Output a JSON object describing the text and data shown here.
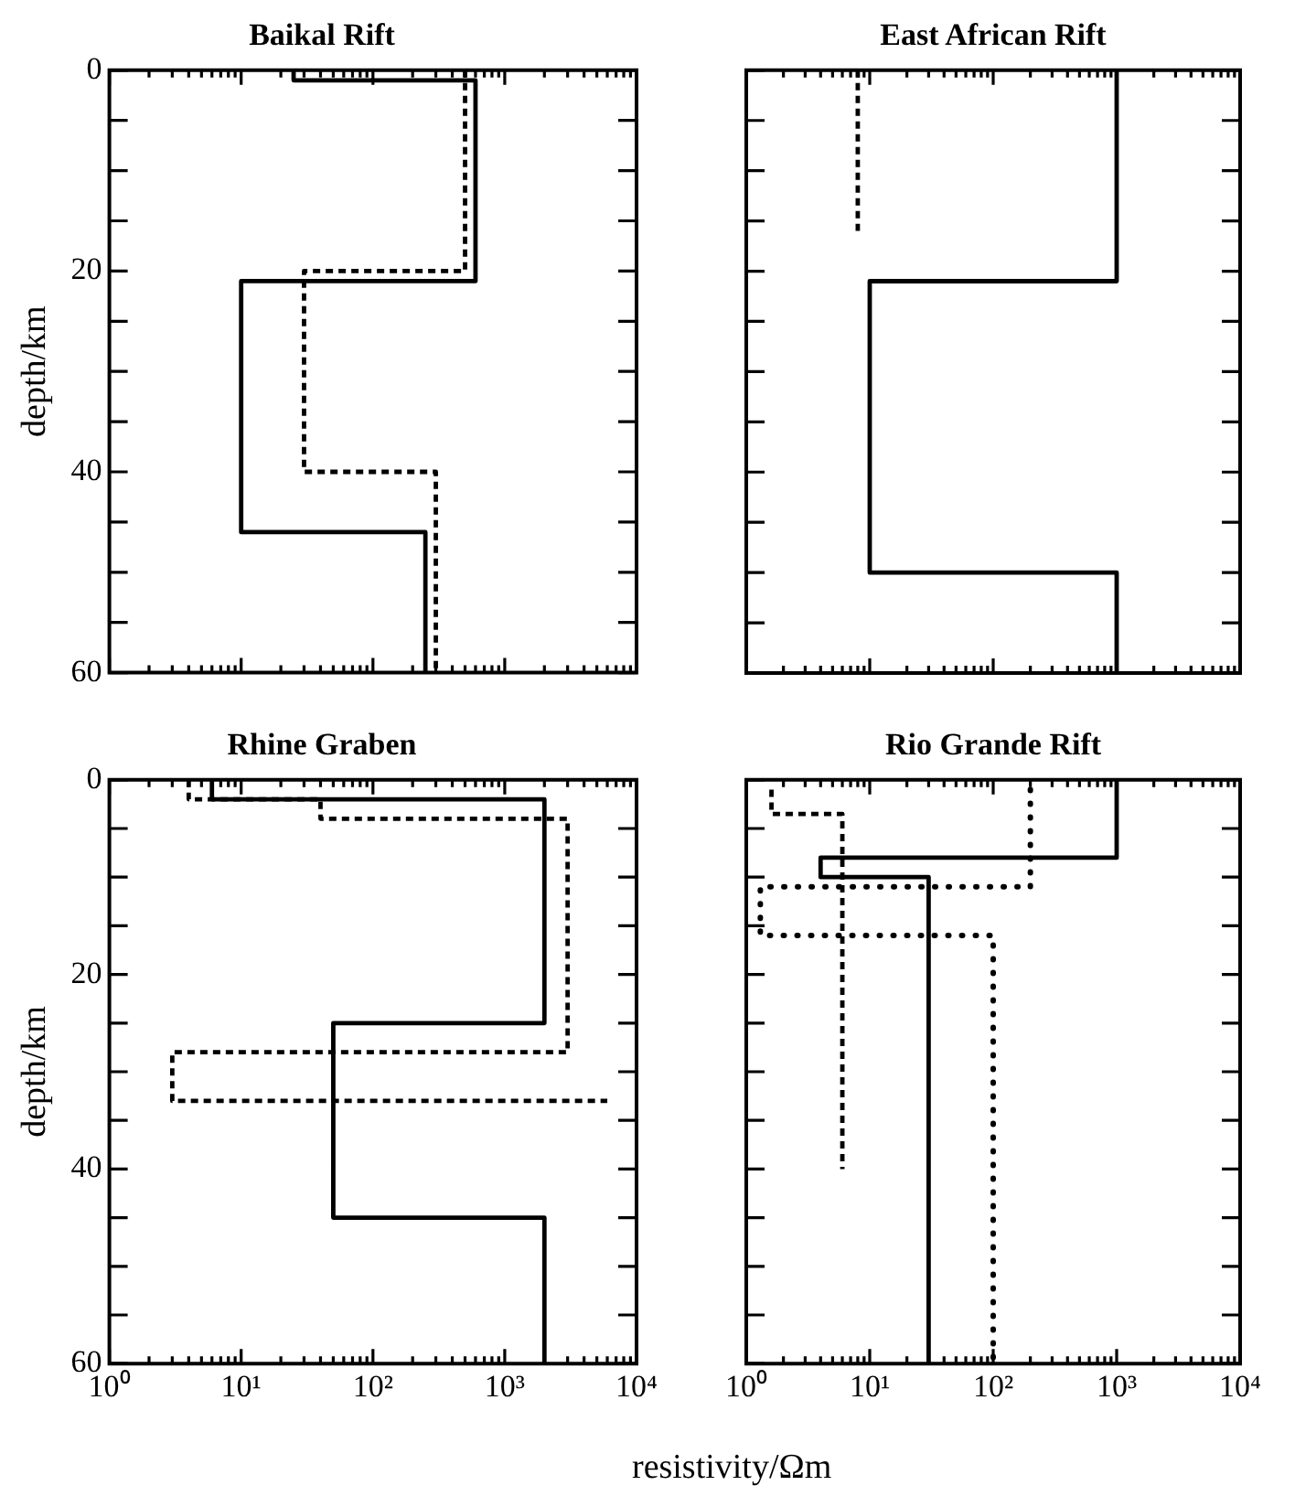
{
  "chart_data": [
    {
      "type": "line",
      "title": "Baikal Rift",
      "ylabel": "depth/km",
      "log": "x",
      "xlim": [
        1,
        10000
      ],
      "ylim": [
        60,
        0
      ],
      "tick_labels": "y",
      "xticks": [
        {
          "value": 1,
          "label": null
        },
        {
          "value": 2,
          "label": null
        },
        {
          "value": 3,
          "label": null
        },
        {
          "value": 4,
          "label": null
        },
        {
          "value": 5,
          "label": null
        },
        {
          "value": 6,
          "label": null
        },
        {
          "value": 7,
          "label": null
        },
        {
          "value": 8,
          "label": null
        },
        {
          "value": 9,
          "label": null
        },
        {
          "value": 10,
          "label": null
        },
        {
          "value": 20,
          "label": null
        },
        {
          "value": 30,
          "label": null
        },
        {
          "value": 40,
          "label": null
        },
        {
          "value": 50,
          "label": null
        },
        {
          "value": 60,
          "label": null
        },
        {
          "value": 70,
          "label": null
        },
        {
          "value": 80,
          "label": null
        },
        {
          "value": 90,
          "label": null
        },
        {
          "value": 100,
          "label": null
        },
        {
          "value": 200,
          "label": null
        },
        {
          "value": 300,
          "label": null
        },
        {
          "value": 400,
          "label": null
        },
        {
          "value": 500,
          "label": null
        },
        {
          "value": 600,
          "label": null
        },
        {
          "value": 700,
          "label": null
        },
        {
          "value": 800,
          "label": null
        },
        {
          "value": 900,
          "label": null
        },
        {
          "value": 1000,
          "label": null
        },
        {
          "value": 2000,
          "label": null
        },
        {
          "value": 3000,
          "label": null
        },
        {
          "value": 4000,
          "label": null
        },
        {
          "value": 5000,
          "label": null
        },
        {
          "value": 6000,
          "label": null
        },
        {
          "value": 7000,
          "label": null
        },
        {
          "value": 8000,
          "label": null
        },
        {
          "value": 9000,
          "label": null
        },
        {
          "value": 10000,
          "label": null
        }
      ],
      "yticks": [
        0,
        {
          "value": 5,
          "label": null
        },
        {
          "value": 10,
          "label": null
        },
        {
          "value": 15,
          "label": null
        },
        20,
        {
          "value": 25,
          "label": null
        },
        {
          "value": 30,
          "label": null
        },
        {
          "value": 35,
          "label": null
        },
        40,
        {
          "value": 45,
          "label": null
        },
        {
          "value": 50,
          "label": null
        },
        {
          "value": 55,
          "label": null
        },
        60
      ],
      "series": [
        {
          "color": "#000000",
          "line_style": "solid",
          "x": [
            25,
            25,
            600,
            600,
            10,
            10,
            250,
            250
          ],
          "values": [
            0,
            1,
            1,
            21,
            21,
            46,
            46,
            60
          ]
        },
        {
          "color": "#000000",
          "line_style": "dashed",
          "x": [
            500,
            500,
            30,
            30,
            300,
            300
          ],
          "values": [
            0,
            20,
            20,
            40,
            40,
            60
          ]
        }
      ]
    },
    {
      "type": "line",
      "title": "East African Rift",
      "log": "x",
      "xlim": [
        1,
        10000
      ],
      "ylim": [
        60,
        0
      ],
      "tick_labels": false,
      "xticks": [
        {
          "value": 1,
          "label": null
        },
        {
          "value": 2,
          "label": null
        },
        {
          "value": 3,
          "label": null
        },
        {
          "value": 4,
          "label": null
        },
        {
          "value": 5,
          "label": null
        },
        {
          "value": 6,
          "label": null
        },
        {
          "value": 7,
          "label": null
        },
        {
          "value": 8,
          "label": null
        },
        {
          "value": 9,
          "label": null
        },
        {
          "value": 10,
          "label": null
        },
        {
          "value": 20,
          "label": null
        },
        {
          "value": 30,
          "label": null
        },
        {
          "value": 40,
          "label": null
        },
        {
          "value": 50,
          "label": null
        },
        {
          "value": 60,
          "label": null
        },
        {
          "value": 70,
          "label": null
        },
        {
          "value": 80,
          "label": null
        },
        {
          "value": 90,
          "label": null
        },
        {
          "value": 100,
          "label": null
        },
        {
          "value": 200,
          "label": null
        },
        {
          "value": 300,
          "label": null
        },
        {
          "value": 400,
          "label": null
        },
        {
          "value": 500,
          "label": null
        },
        {
          "value": 600,
          "label": null
        },
        {
          "value": 700,
          "label": null
        },
        {
          "value": 800,
          "label": null
        },
        {
          "value": 900,
          "label": null
        },
        {
          "value": 1000,
          "label": null
        },
        {
          "value": 2000,
          "label": null
        },
        {
          "value": 3000,
          "label": null
        },
        {
          "value": 4000,
          "label": null
        },
        {
          "value": 5000,
          "label": null
        },
        {
          "value": 6000,
          "label": null
        },
        {
          "value": 7000,
          "label": null
        },
        {
          "value": 8000,
          "label": null
        },
        {
          "value": 9000,
          "label": null
        },
        {
          "value": 10000,
          "label": null
        }
      ],
      "yticks": [
        {
          "value": 0,
          "label": null
        },
        {
          "value": 5,
          "label": null
        },
        {
          "value": 10,
          "label": null
        },
        {
          "value": 15,
          "label": null
        },
        {
          "value": 20,
          "label": null
        },
        {
          "value": 25,
          "label": null
        },
        {
          "value": 30,
          "label": null
        },
        {
          "value": 35,
          "label": null
        },
        {
          "value": 40,
          "label": null
        },
        {
          "value": 45,
          "label": null
        },
        {
          "value": 50,
          "label": null
        },
        {
          "value": 55,
          "label": null
        },
        {
          "value": 60,
          "label": null
        }
      ],
      "series": [
        {
          "color": "#000000",
          "line_style": "solid",
          "x": [
            1000,
            1000,
            10,
            10,
            1000,
            1000
          ],
          "values": [
            0,
            21,
            21,
            50,
            50,
            60
          ]
        },
        {
          "color": "#000000",
          "line_style": "dashed",
          "x": [
            8,
            8
          ],
          "values": [
            0,
            16
          ]
        }
      ]
    },
    {
      "type": "line",
      "title": "Rhine Graben",
      "ylabel": "depth/km",
      "xlabel": "resistivity/Ωm",
      "log": "x",
      "xlim": [
        1,
        10000
      ],
      "ylim": [
        60,
        0
      ],
      "xticks": [
        {
          "value": 1,
          "label": "10⁰"
        },
        {
          "value": 2,
          "label": null
        },
        {
          "value": 3,
          "label": null
        },
        {
          "value": 4,
          "label": null
        },
        {
          "value": 5,
          "label": null
        },
        {
          "value": 6,
          "label": null
        },
        {
          "value": 7,
          "label": null
        },
        {
          "value": 8,
          "label": null
        },
        {
          "value": 9,
          "label": null
        },
        {
          "value": 10,
          "label": "10¹"
        },
        {
          "value": 20,
          "label": null
        },
        {
          "value": 30,
          "label": null
        },
        {
          "value": 40,
          "label": null
        },
        {
          "value": 50,
          "label": null
        },
        {
          "value": 60,
          "label": null
        },
        {
          "value": 70,
          "label": null
        },
        {
          "value": 80,
          "label": null
        },
        {
          "value": 90,
          "label": null
        },
        {
          "value": 100,
          "label": "10²"
        },
        {
          "value": 200,
          "label": null
        },
        {
          "value": 300,
          "label": null
        },
        {
          "value": 400,
          "label": null
        },
        {
          "value": 500,
          "label": null
        },
        {
          "value": 600,
          "label": null
        },
        {
          "value": 700,
          "label": null
        },
        {
          "value": 800,
          "label": null
        },
        {
          "value": 900,
          "label": null
        },
        {
          "value": 1000,
          "label": "10³"
        },
        {
          "value": 2000,
          "label": null
        },
        {
          "value": 3000,
          "label": null
        },
        {
          "value": 4000,
          "label": null
        },
        {
          "value": 5000,
          "label": null
        },
        {
          "value": 6000,
          "label": null
        },
        {
          "value": 7000,
          "label": null
        },
        {
          "value": 8000,
          "label": null
        },
        {
          "value": 9000,
          "label": null
        },
        {
          "value": 10000,
          "label": "10⁴"
        }
      ],
      "yticks": [
        0,
        {
          "value": 5,
          "label": null
        },
        {
          "value": 10,
          "label": null
        },
        {
          "value": 15,
          "label": null
        },
        20,
        {
          "value": 25,
          "label": null
        },
        {
          "value": 30,
          "label": null
        },
        {
          "value": 35,
          "label": null
        },
        40,
        {
          "value": 45,
          "label": null
        },
        {
          "value": 50,
          "label": null
        },
        {
          "value": 55,
          "label": null
        },
        60
      ],
      "series": [
        {
          "color": "#000000",
          "line_style": "solid",
          "x": [
            6,
            6,
            2000,
            2000,
            50,
            50,
            2000,
            2000
          ],
          "values": [
            0,
            2,
            2,
            25,
            25,
            45,
            45,
            60
          ]
        },
        {
          "color": "#000000",
          "line_style": "dashed",
          "x": [
            4,
            4,
            40,
            40,
            3000,
            3000,
            3,
            3,
            6000
          ],
          "values": [
            0,
            2,
            2,
            4,
            4,
            28,
            28,
            33,
            33
          ]
        }
      ]
    },
    {
      "type": "line",
      "title": "Rio Grande Rift",
      "log": "x",
      "xlim": [
        1,
        10000
      ],
      "ylim": [
        60,
        0
      ],
      "tick_labels": "x",
      "xticks": [
        {
          "value": 1,
          "label": "10⁰"
        },
        {
          "value": 2,
          "label": null
        },
        {
          "value": 3,
          "label": null
        },
        {
          "value": 4,
          "label": null
        },
        {
          "value": 5,
          "label": null
        },
        {
          "value": 6,
          "label": null
        },
        {
          "value": 7,
          "label": null
        },
        {
          "value": 8,
          "label": null
        },
        {
          "value": 9,
          "label": null
        },
        {
          "value": 10,
          "label": "10¹"
        },
        {
          "value": 20,
          "label": null
        },
        {
          "value": 30,
          "label": null
        },
        {
          "value": 40,
          "label": null
        },
        {
          "value": 50,
          "label": null
        },
        {
          "value": 60,
          "label": null
        },
        {
          "value": 70,
          "label": null
        },
        {
          "value": 80,
          "label": null
        },
        {
          "value": 90,
          "label": null
        },
        {
          "value": 100,
          "label": "10²"
        },
        {
          "value": 200,
          "label": null
        },
        {
          "value": 300,
          "label": null
        },
        {
          "value": 400,
          "label": null
        },
        {
          "value": 500,
          "label": null
        },
        {
          "value": 600,
          "label": null
        },
        {
          "value": 700,
          "label": null
        },
        {
          "value": 800,
          "label": null
        },
        {
          "value": 900,
          "label": null
        },
        {
          "value": 1000,
          "label": "10³"
        },
        {
          "value": 2000,
          "label": null
        },
        {
          "value": 3000,
          "label": null
        },
        {
          "value": 4000,
          "label": null
        },
        {
          "value": 5000,
          "label": null
        },
        {
          "value": 6000,
          "label": null
        },
        {
          "value": 7000,
          "label": null
        },
        {
          "value": 8000,
          "label": null
        },
        {
          "value": 9000,
          "label": null
        },
        {
          "value": 10000,
          "label": "10⁴"
        }
      ],
      "yticks": [
        {
          "value": 0,
          "label": null
        },
        {
          "value": 5,
          "label": null
        },
        {
          "value": 10,
          "label": null
        },
        {
          "value": 15,
          "label": null
        },
        {
          "value": 20,
          "label": null
        },
        {
          "value": 25,
          "label": null
        },
        {
          "value": 30,
          "label": null
        },
        {
          "value": 35,
          "label": null
        },
        {
          "value": 40,
          "label": null
        },
        {
          "value": 45,
          "label": null
        },
        {
          "value": 50,
          "label": null
        },
        {
          "value": 55,
          "label": null
        },
        {
          "value": 60,
          "label": null
        }
      ],
      "series": [
        {
          "color": "#000000",
          "line_style": "solid",
          "x": [
            1000,
            1000,
            4,
            4,
            30,
            30
          ],
          "values": [
            0,
            8,
            8,
            10,
            10,
            60
          ]
        },
        {
          "color": "#000000",
          "line_style": "dashed",
          "x": [
            1.6,
            1.6,
            6,
            6
          ],
          "values": [
            1,
            3.5,
            3.5,
            40
          ]
        },
        {
          "color": "#000000",
          "line_style": "dotted",
          "x": [
            200,
            200,
            1.3,
            1.3,
            100,
            100
          ],
          "values": [
            1,
            11,
            11,
            16,
            16,
            60
          ]
        }
      ]
    }
  ]
}
